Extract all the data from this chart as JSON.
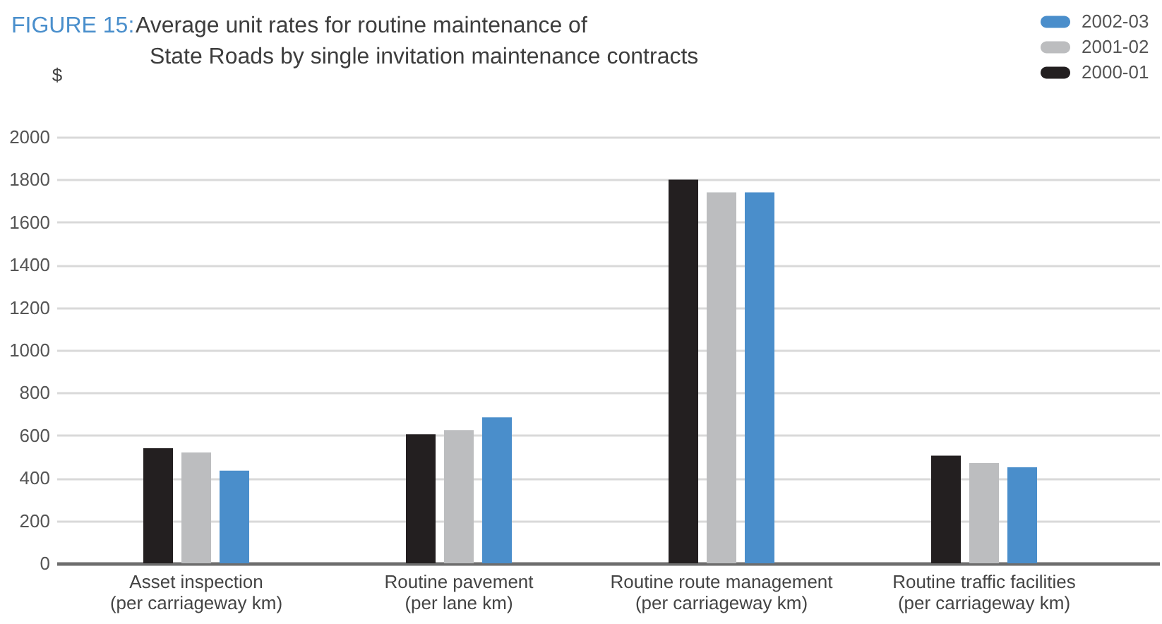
{
  "chart_data": {
    "type": "bar",
    "title": "FIGURE 15:",
    "subtitle": "Average unit rates for routine maintenance of\nState Roads by single invitation maintenance contracts",
    "ylabel": "$",
    "categories": [
      "Asset inspection\n(per carriageway km)",
      "Routine pavement\n(per lane km)",
      "Routine route management\n(per carriageway km)",
      "Routine traffic facilities\n(per carriageway km)"
    ],
    "series": [
      {
        "name": "2000-01",
        "color": "#231f20",
        "values": [
          540,
          605,
          1800,
          505
        ]
      },
      {
        "name": "2001-02",
        "color": "#bcbdbf",
        "values": [
          520,
          625,
          1740,
          470
        ]
      },
      {
        "name": "2002-03",
        "color": "#4a8ecb",
        "values": [
          435,
          685,
          1740,
          450
        ]
      }
    ],
    "ylim": [
      0,
      2000
    ],
    "yticks": [
      0,
      200,
      400,
      600,
      800,
      1000,
      1200,
      1400,
      1600,
      1800,
      2000
    ],
    "grid": "y",
    "legend": "top right"
  }
}
